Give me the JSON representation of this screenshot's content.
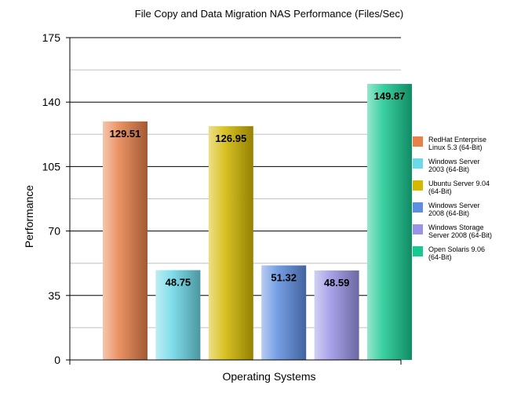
{
  "chart_data": {
    "type": "bar",
    "title": "File Copy and Data Migration NAS Performance (Files/Sec)",
    "xlabel": "Operating Systems",
    "ylabel": "Performance",
    "ylim": [
      0,
      175
    ],
    "yticks": [
      0,
      35,
      70,
      105,
      140,
      175
    ],
    "grid": true,
    "legend_position": "right",
    "series": [
      {
        "name": "RedHat Enterprise Linux 5.3 (64-Bit)",
        "legend_lines": [
          "RedHat Enterprise",
          "Linux 5.3 (64-Bit)"
        ],
        "value": 129.51,
        "label": "129.51",
        "color": "#e8804a"
      },
      {
        "name": "Windows Server 2003 (64-Bit)",
        "legend_lines": [
          "Windows Server",
          "2003 (64-Bit)"
        ],
        "value": 48.75,
        "label": "48.75",
        "color": "#6cd8e8"
      },
      {
        "name": "Ubuntu Server 9.04 (64-Bit)",
        "legend_lines": [
          "Ubuntu Server 9.04",
          "(64-Bit)"
        ],
        "value": 126.95,
        "label": "126.95",
        "color": "#d4b800"
      },
      {
        "name": "Windows Server 2008 (64-Bit)",
        "legend_lines": [
          "Windows Server",
          "2008 (64-Bit)"
        ],
        "value": 51.32,
        "label": "51.32",
        "color": "#5e8ee0"
      },
      {
        "name": "Windows Storage Server 2008 (64-Bit)",
        "legend_lines": [
          "Windows Storage",
          "Server 2008 (64-Bit)"
        ],
        "value": 48.59,
        "label": "48.59",
        "color": "#9a94e6"
      },
      {
        "name": "Open Solaris 9.06 (64-Bit)",
        "legend_lines": [
          "Open Solaris 9.06",
          "(64-Bit)"
        ],
        "value": 149.87,
        "label": "149.87",
        "color": "#18c890"
      }
    ]
  }
}
